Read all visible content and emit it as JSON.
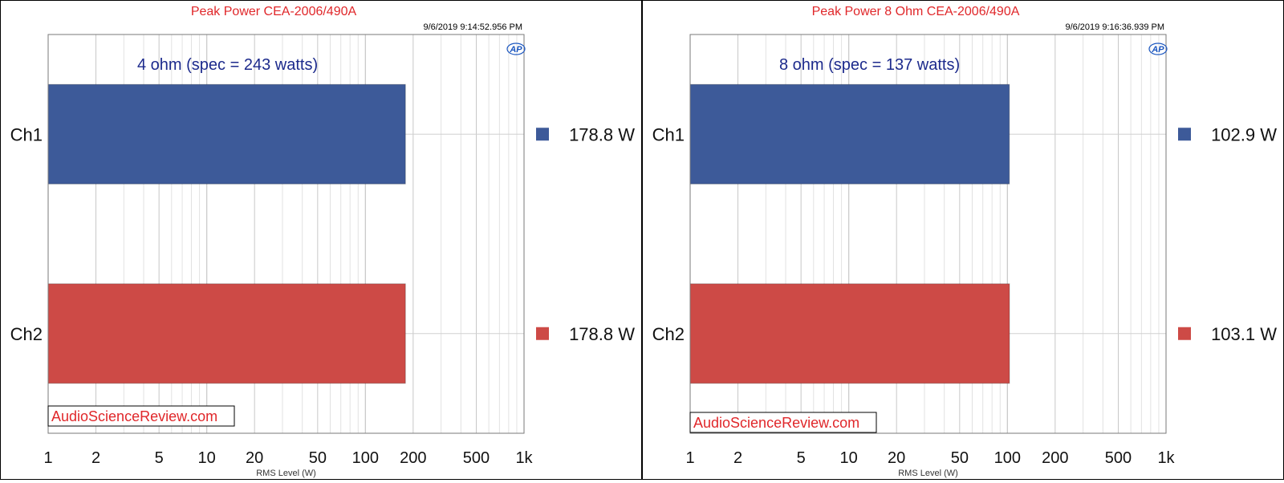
{
  "chart_data": [
    {
      "type": "bar",
      "orientation": "horizontal",
      "title": "Peak Power CEA-2006/490A",
      "timestamp": "9/6/2019 9:14:52.956 PM",
      "annotation": "4 ohm (spec = 243 watts)",
      "categories": [
        "Ch1",
        "Ch2"
      ],
      "values": [
        178.8,
        178.8
      ],
      "value_labels": [
        "178.8  W",
        "178.8  W"
      ],
      "colors": [
        "#3d5a99",
        "#cd4a46"
      ],
      "xlabel": "RMS Level (W)",
      "xscale": "log",
      "xlim": [
        1,
        1000
      ],
      "xticks": [
        1,
        2,
        5,
        10,
        20,
        50,
        100,
        200,
        500,
        1000
      ],
      "xtick_labels": [
        "1",
        "2",
        "5",
        "10",
        "20",
        "50",
        "100",
        "200",
        "500",
        "1k"
      ],
      "grid": true,
      "legend_position": "right",
      "watermark": "AudioScienceReview.com",
      "logo": "AP"
    },
    {
      "type": "bar",
      "orientation": "horizontal",
      "title": "Peak Power 8 Ohm CEA-2006/490A",
      "timestamp": "9/6/2019 9:16:36.939 PM",
      "annotation": "8 ohm (spec = 137 watts)",
      "categories": [
        "Ch1",
        "Ch2"
      ],
      "values": [
        102.9,
        103.1
      ],
      "value_labels": [
        "102.9  W",
        "103.1  W"
      ],
      "colors": [
        "#3d5a99",
        "#cd4a46"
      ],
      "xlabel": "RMS Level (W)",
      "xscale": "log",
      "xlim": [
        1,
        1000
      ],
      "xticks": [
        1,
        2,
        5,
        10,
        20,
        50,
        100,
        200,
        500,
        1000
      ],
      "xtick_labels": [
        "1",
        "2",
        "5",
        "10",
        "20",
        "50",
        "100",
        "200",
        "500",
        "1k"
      ],
      "grid": true,
      "legend_position": "right",
      "watermark": "AudioScienceReview.com",
      "logo": "AP"
    }
  ]
}
